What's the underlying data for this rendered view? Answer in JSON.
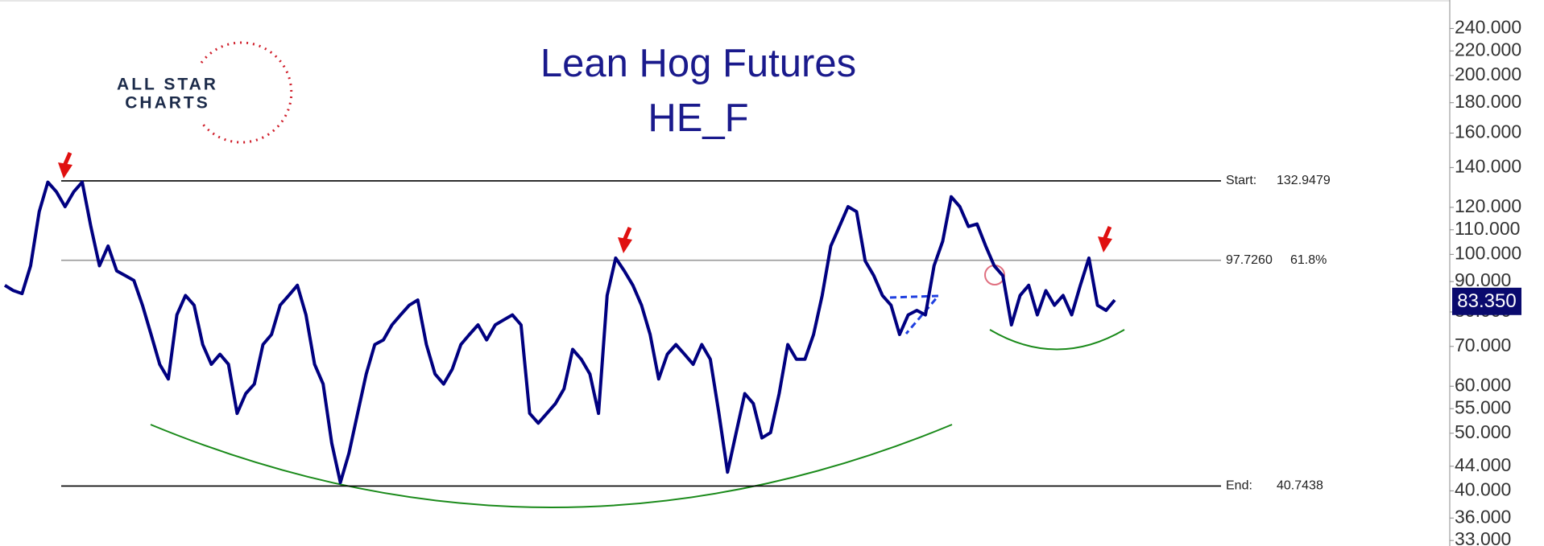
{
  "chart_data": {
    "type": "line",
    "title": "Lean Hog Futures",
    "subtitle": "HE_F",
    "logo": [
      "ALL STAR",
      "CHARTS"
    ],
    "log_scale": true,
    "color": "#000080",
    "ylim": [
      32.3,
      268
    ],
    "yticks": [
      {
        "value": 240,
        "label": "240.000"
      },
      {
        "value": 220,
        "label": "220.000"
      },
      {
        "value": 200,
        "label": "200.000"
      },
      {
        "value": 180,
        "label": "180.000"
      },
      {
        "value": 160,
        "label": "160.000"
      },
      {
        "value": 140,
        "label": "140.000"
      },
      {
        "value": 120,
        "label": "120.000"
      },
      {
        "value": 110,
        "label": "110.000"
      },
      {
        "value": 100,
        "label": "100.000"
      },
      {
        "value": 90,
        "label": "90.000"
      },
      {
        "value": 80,
        "label": "80.000"
      },
      {
        "value": 70,
        "label": "70.000"
      },
      {
        "value": 60,
        "label": "60.000"
      },
      {
        "value": 55,
        "label": "55.000"
      },
      {
        "value": 50,
        "label": "50.000"
      },
      {
        "value": 44,
        "label": "44.000"
      },
      {
        "value": 40,
        "label": "40.000"
      },
      {
        "value": 36,
        "label": "36.000"
      },
      {
        "value": 33,
        "label": "33.000"
      }
    ],
    "values": [
      88.7,
      86.9,
      85.9,
      95.7,
      118,
      132.3,
      127.4,
      120.3,
      127.4,
      132.3,
      111.4,
      95.7,
      103.3,
      93.8,
      92.1,
      90.4,
      82.1,
      73.3,
      65.3,
      61.7,
      79.1,
      85.3,
      82.1,
      70.5,
      65.3,
      67.9,
      65.3,
      54.0,
      58.3,
      60.5,
      70.5,
      73.3,
      82.1,
      85.3,
      88.7,
      79.1,
      65.3,
      60.5,
      48.1,
      41.3,
      46.3,
      54.0,
      62.9,
      70.5,
      71.8,
      76.1,
      79.1,
      82.1,
      83.8,
      70.5,
      62.9,
      60.5,
      64.1,
      70.5,
      73.3,
      76.1,
      71.8,
      76.1,
      77.6,
      79.1,
      76.1,
      54.0,
      52.0,
      54.0,
      56.1,
      59.4,
      69.2,
      66.6,
      62.9,
      54.0,
      85.3,
      98.6,
      93.8,
      88.7,
      82.1,
      73.3,
      61.7,
      67.9,
      70.5,
      67.9,
      65.3,
      70.5,
      66.6,
      54.0,
      43.0,
      50.1,
      58.3,
      56.1,
      49.1,
      50.1,
      58.3,
      70.5,
      66.6,
      66.6,
      73.3,
      85.3,
      103.3,
      111.4,
      120.3,
      118,
      97.5,
      92.1,
      85.3,
      82.1,
      73.3,
      79.1,
      80.5,
      79.1,
      95.7,
      105.2,
      125.0,
      120.3,
      111.4,
      112.5,
      103.3,
      95.7,
      92.1,
      76.1,
      85.3,
      88.7,
      79.1,
      86.9,
      82.1,
      85.3,
      79.1,
      88.7,
      98.6,
      82.1,
      80.5,
      83.8
    ],
    "last_value": {
      "value": 83.35,
      "label": "83.350"
    },
    "levels": [
      {
        "name": "Start:",
        "value": 132.9479,
        "label": "132.9479",
        "color": "#000000"
      },
      {
        "value": 97.726,
        "label": "97.7260",
        "ratio": "61.8%",
        "color": "#999999"
      },
      {
        "name": "End:",
        "value": 40.7438,
        "label": "40.7438",
        "color": "#000000"
      }
    ]
  }
}
